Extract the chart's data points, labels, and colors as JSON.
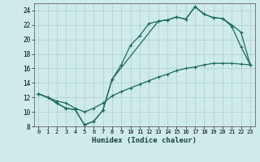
{
  "xlabel": "Humidex (Indice chaleur)",
  "bg_color": "#ceeaea",
  "grid_color": "#aacece",
  "line_color": "#1a6b5a",
  "xlim": [
    -0.5,
    23.5
  ],
  "ylim": [
    8,
    25
  ],
  "xticks": [
    0,
    1,
    2,
    3,
    4,
    5,
    6,
    7,
    8,
    9,
    10,
    11,
    12,
    13,
    14,
    15,
    16,
    17,
    18,
    19,
    20,
    21,
    22,
    23
  ],
  "yticks": [
    8,
    10,
    12,
    14,
    16,
    18,
    20,
    22,
    24
  ],
  "curve_upper_x": [
    0,
    1,
    2,
    3,
    4,
    5,
    6,
    7,
    8,
    13,
    14,
    15,
    16,
    17,
    18,
    19,
    20,
    21,
    22,
    23
  ],
  "curve_upper_y": [
    12.5,
    12.0,
    11.2,
    10.5,
    10.3,
    8.2,
    8.7,
    10.2,
    14.5,
    22.5,
    22.7,
    23.1,
    22.8,
    24.5,
    23.5,
    23.0,
    22.9,
    22.0,
    21.0,
    16.5
  ],
  "curve_mid_x": [
    0,
    1,
    2,
    3,
    4,
    5,
    6,
    7,
    8,
    9,
    10,
    11,
    12,
    13,
    14,
    15,
    16,
    17,
    18,
    19,
    20,
    21,
    22,
    23
  ],
  "curve_mid_y": [
    12.5,
    12.0,
    11.2,
    10.5,
    10.3,
    8.2,
    8.7,
    10.2,
    14.5,
    16.5,
    19.2,
    20.5,
    22.2,
    22.5,
    22.7,
    23.1,
    22.8,
    24.5,
    23.5,
    23.0,
    22.9,
    21.8,
    19.0,
    16.5
  ],
  "curve_low_x": [
    0,
    1,
    2,
    3,
    4,
    5,
    6,
    7,
    8,
    9,
    10,
    11,
    12,
    13,
    14,
    15,
    16,
    17,
    18,
    19,
    20,
    21,
    22,
    23
  ],
  "curve_low_y": [
    12.5,
    12.0,
    11.5,
    11.2,
    10.5,
    10.0,
    10.5,
    11.2,
    12.2,
    12.8,
    13.3,
    13.8,
    14.3,
    14.8,
    15.2,
    15.7,
    16.0,
    16.2,
    16.5,
    16.7,
    16.7,
    16.7,
    16.6,
    16.5
  ]
}
